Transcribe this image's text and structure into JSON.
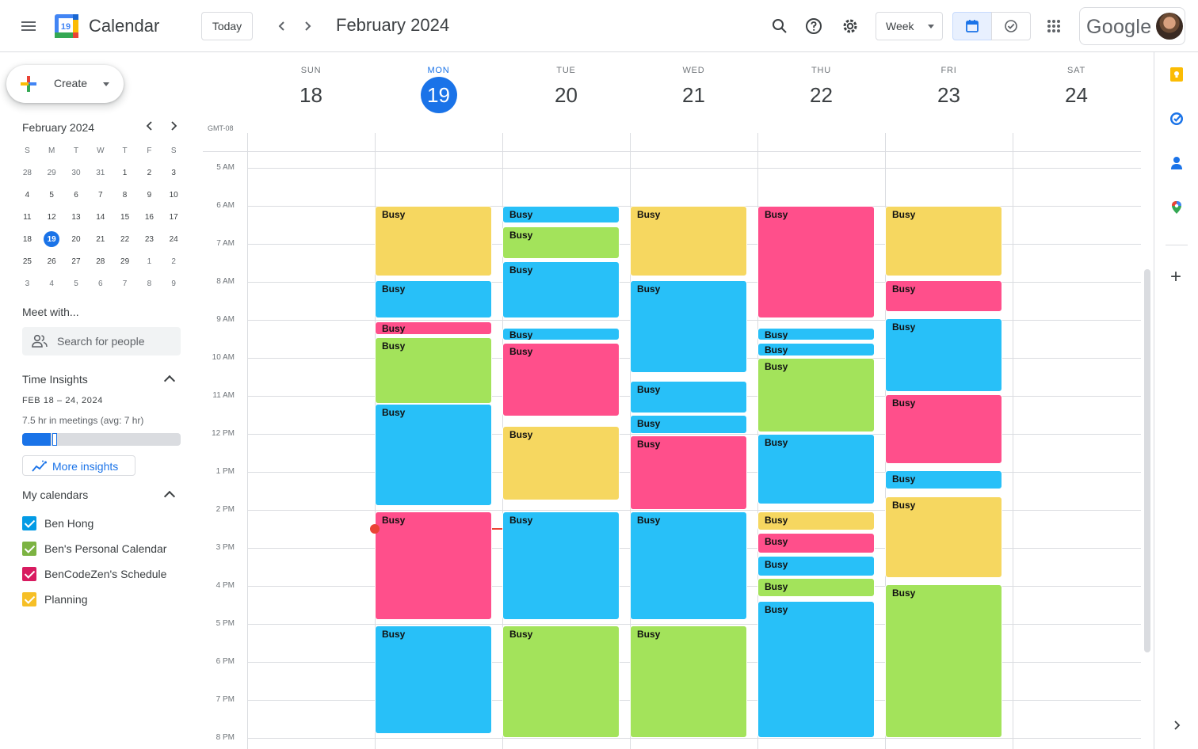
{
  "header": {
    "app_title": "Calendar",
    "logo_day": "19",
    "today_label": "Today",
    "period_label": "February 2024",
    "view_label": "Week",
    "account_brand": "Google"
  },
  "sidebar": {
    "create_label": "Create",
    "mini_month": "February 2024",
    "weekday_initials": [
      "S",
      "M",
      "T",
      "W",
      "T",
      "F",
      "S"
    ],
    "mini_weeks": [
      [
        "28",
        "29",
        "30",
        "31",
        "1",
        "2",
        "3"
      ],
      [
        "4",
        "5",
        "6",
        "7",
        "8",
        "9",
        "10"
      ],
      [
        "11",
        "12",
        "13",
        "14",
        "15",
        "16",
        "17"
      ],
      [
        "18",
        "19",
        "20",
        "21",
        "22",
        "23",
        "24"
      ],
      [
        "25",
        "26",
        "27",
        "28",
        "29",
        "1",
        "2"
      ],
      [
        "3",
        "4",
        "5",
        "6",
        "7",
        "8",
        "9"
      ]
    ],
    "mini_selected": "19",
    "meet_title": "Meet with...",
    "search_people_placeholder": "Search for people",
    "insights_title": "Time Insights",
    "insights_range": "FEB 18 – 24, 2024",
    "insights_text": "7.5 hr in meetings (avg: 7 hr)",
    "insights_progress": 0.18,
    "insights_avg_marker": 0.19,
    "more_insights_label": "More insights",
    "my_calendars_title": "My calendars",
    "calendars": [
      {
        "name": "Ben Hong",
        "color": "#039be5"
      },
      {
        "name": "Ben's Personal Calendar",
        "color": "#7cb342"
      },
      {
        "name": "BenCodeZen's Schedule",
        "color": "#d81b60"
      },
      {
        "name": "Planning",
        "color": "#f6bf26"
      }
    ]
  },
  "week": {
    "timezone": "GMT-08",
    "days": [
      {
        "dow": "SUN",
        "num": "18",
        "today": false
      },
      {
        "dow": "MON",
        "num": "19",
        "today": true
      },
      {
        "dow": "TUE",
        "num": "20",
        "today": false
      },
      {
        "dow": "WED",
        "num": "21",
        "today": false
      },
      {
        "dow": "THU",
        "num": "22",
        "today": false
      },
      {
        "dow": "FRI",
        "num": "23",
        "today": false
      },
      {
        "dow": "SAT",
        "num": "24",
        "today": false
      }
    ],
    "hours": [
      "5 AM",
      "6 AM",
      "7 AM",
      "8 AM",
      "9 AM",
      "10 AM",
      "11 AM",
      "12 PM",
      "1 PM",
      "2 PM",
      "3 PM",
      "4 PM",
      "5 PM",
      "6 PM",
      "7 PM",
      "8 PM"
    ],
    "first_hour": 5,
    "now_hour": 14.5,
    "palette": {
      "yellow": "#f6d760",
      "green": "#a3e35b",
      "pink": "#ff4f8b",
      "blue": "#28c0f8"
    },
    "events": [
      {
        "day": 1,
        "start": 6.0,
        "end": 7.85,
        "color": "yellow",
        "title": "Busy"
      },
      {
        "day": 1,
        "start": 7.95,
        "end": 8.95,
        "color": "blue",
        "title": "Busy"
      },
      {
        "day": 1,
        "start": 9.05,
        "end": 9.4,
        "color": "pink",
        "title": "Busy"
      },
      {
        "day": 1,
        "start": 9.45,
        "end": 11.2,
        "color": "green",
        "title": "Busy"
      },
      {
        "day": 1,
        "start": 11.2,
        "end": 13.9,
        "color": "blue",
        "title": "Busy"
      },
      {
        "day": 1,
        "start": 14.05,
        "end": 16.9,
        "color": "pink",
        "title": "Busy"
      },
      {
        "day": 1,
        "start": 17.05,
        "end": 19.9,
        "color": "blue",
        "title": "Busy"
      },
      {
        "day": 2,
        "start": 6.0,
        "end": 6.45,
        "color": "blue",
        "title": "Busy"
      },
      {
        "day": 2,
        "start": 6.55,
        "end": 7.4,
        "color": "green",
        "title": "Busy"
      },
      {
        "day": 2,
        "start": 7.45,
        "end": 8.95,
        "color": "blue",
        "title": "Busy"
      },
      {
        "day": 2,
        "start": 9.2,
        "end": 9.55,
        "color": "blue",
        "title": "Busy"
      },
      {
        "day": 2,
        "start": 9.6,
        "end": 11.55,
        "color": "pink",
        "title": "Busy"
      },
      {
        "day": 2,
        "start": 11.8,
        "end": 13.75,
        "color": "yellow",
        "title": "Busy"
      },
      {
        "day": 2,
        "start": 14.05,
        "end": 16.9,
        "color": "blue",
        "title": "Busy"
      },
      {
        "day": 2,
        "start": 17.05,
        "end": 20.0,
        "color": "green",
        "title": "Busy"
      },
      {
        "day": 3,
        "start": 6.0,
        "end": 7.85,
        "color": "yellow",
        "title": "Busy"
      },
      {
        "day": 3,
        "start": 7.95,
        "end": 10.4,
        "color": "blue",
        "title": "Busy"
      },
      {
        "day": 3,
        "start": 10.6,
        "end": 11.45,
        "color": "blue",
        "title": "Busy"
      },
      {
        "day": 3,
        "start": 11.5,
        "end": 12.0,
        "color": "blue",
        "title": "Busy"
      },
      {
        "day": 3,
        "start": 12.05,
        "end": 14.0,
        "color": "pink",
        "title": "Busy"
      },
      {
        "day": 3,
        "start": 14.05,
        "end": 16.9,
        "color": "blue",
        "title": "Busy"
      },
      {
        "day": 3,
        "start": 17.05,
        "end": 20.0,
        "color": "green",
        "title": "Busy"
      },
      {
        "day": 4,
        "start": 6.0,
        "end": 8.95,
        "color": "pink",
        "title": "Busy"
      },
      {
        "day": 4,
        "start": 9.2,
        "end": 9.55,
        "color": "blue",
        "title": "Busy"
      },
      {
        "day": 4,
        "start": 9.6,
        "end": 9.95,
        "color": "blue",
        "title": "Busy"
      },
      {
        "day": 4,
        "start": 10.0,
        "end": 11.95,
        "color": "green",
        "title": "Busy"
      },
      {
        "day": 4,
        "start": 12.0,
        "end": 13.85,
        "color": "blue",
        "title": "Busy"
      },
      {
        "day": 4,
        "start": 14.05,
        "end": 14.55,
        "color": "yellow",
        "title": "Busy"
      },
      {
        "day": 4,
        "start": 14.6,
        "end": 15.15,
        "color": "pink",
        "title": "Busy"
      },
      {
        "day": 4,
        "start": 15.2,
        "end": 15.75,
        "color": "blue",
        "title": "Busy"
      },
      {
        "day": 4,
        "start": 15.8,
        "end": 16.3,
        "color": "green",
        "title": "Busy"
      },
      {
        "day": 4,
        "start": 16.4,
        "end": 20.0,
        "color": "blue",
        "title": "Busy"
      },
      {
        "day": 5,
        "start": 6.0,
        "end": 7.85,
        "color": "yellow",
        "title": "Busy"
      },
      {
        "day": 5,
        "start": 7.95,
        "end": 8.8,
        "color": "pink",
        "title": "Busy"
      },
      {
        "day": 5,
        "start": 8.95,
        "end": 10.9,
        "color": "blue",
        "title": "Busy"
      },
      {
        "day": 5,
        "start": 10.95,
        "end": 12.8,
        "color": "pink",
        "title": "Busy"
      },
      {
        "day": 5,
        "start": 12.95,
        "end": 13.45,
        "color": "blue",
        "title": "Busy"
      },
      {
        "day": 5,
        "start": 13.65,
        "end": 15.8,
        "color": "yellow",
        "title": "Busy"
      },
      {
        "day": 5,
        "start": 15.95,
        "end": 20.0,
        "color": "green",
        "title": "Busy"
      }
    ]
  }
}
